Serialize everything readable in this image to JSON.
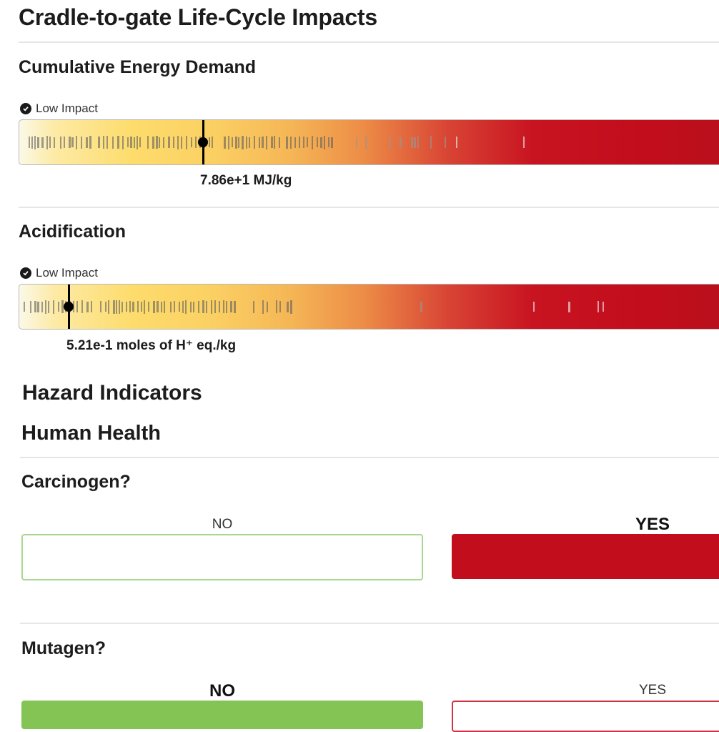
{
  "cycle": {
    "title": "Cradle-to-gate Life-Cycle Impacts",
    "sections": [
      {
        "title": "Cumulative Energy Demand",
        "impact_label": "Low Impact",
        "value_label": "7.86e+1 MJ/kg",
        "marker_fraction": 0.257
      },
      {
        "title": "Acidification",
        "impact_label": "Low Impact",
        "value_label": "5.21e-1 moles of H⁺ eq./kg",
        "marker_fraction": 0.069
      }
    ]
  },
  "hazard": {
    "title": "Hazard Indicators",
    "subtitle": "Human Health",
    "questions": [
      {
        "title": "Carcinogen?",
        "no_label": "NO",
        "yes_label": "YES",
        "answer": "YES"
      },
      {
        "title": "Mutagen?",
        "no_label": "NO",
        "yes_label": "YES",
        "answer": "NO"
      }
    ]
  },
  "colors": {
    "low": "#fdeaa4",
    "high": "#c20d1c",
    "yes_fill": "#c20d1c",
    "no_fill": "#84c455",
    "no_border": "#a8d88e",
    "yes_border": "#d03040"
  },
  "icons": {
    "badge_icon": "check-circle-icon"
  }
}
